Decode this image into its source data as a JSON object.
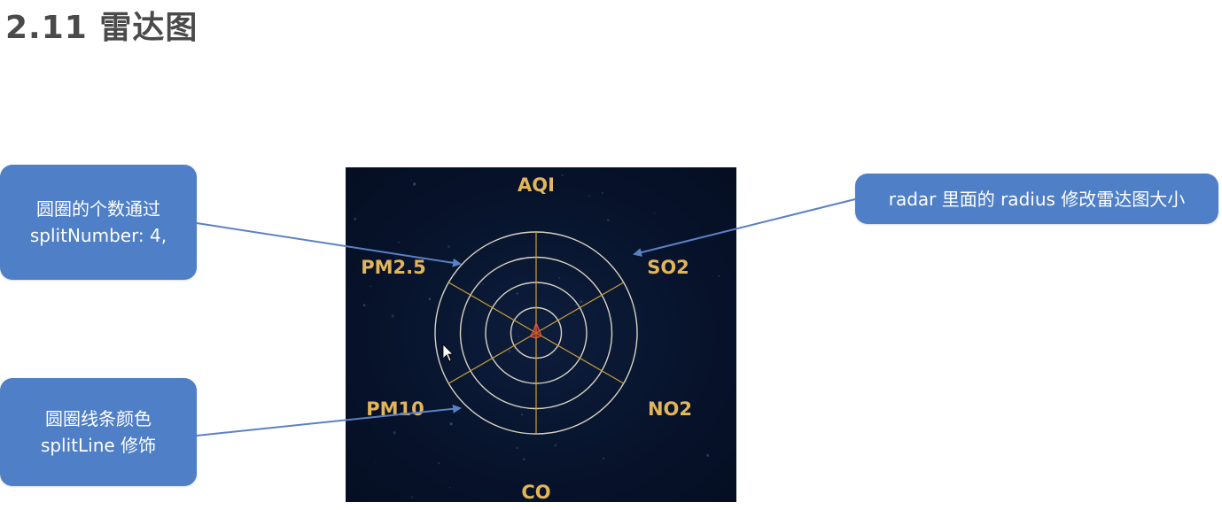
{
  "title": "2.11 雷达图",
  "callouts": {
    "split_number": {
      "line1": "圆圈的个数通过",
      "line2": "splitNumber: 4,"
    },
    "split_line": {
      "line1": "圆圈线条颜色",
      "line2": "splitLine 修饰"
    },
    "radius": {
      "text": "radar 里面的 radius 修改雷达图大小"
    }
  },
  "colors": {
    "callout_bg": "#4f7fc6",
    "chart_bg": "#07132b",
    "circle_stroke": "#d8d2c2",
    "axis_stroke": "#c9a13c",
    "label_color": "#e3b55a",
    "series_fill": "#c0392b",
    "arrow": "#5b80c4"
  },
  "chart_data": {
    "type": "radar",
    "indicators": [
      "AQI",
      "SO2",
      "NO2",
      "CO",
      "PM10",
      "PM2.5"
    ],
    "splitNumber": 4,
    "series": [
      {
        "values": [
          0.1,
          0.04,
          0.06,
          0.05,
          0.07,
          0.03
        ]
      }
    ]
  }
}
